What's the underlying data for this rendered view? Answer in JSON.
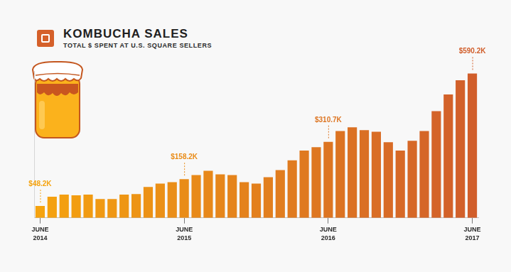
{
  "chart_data": {
    "type": "bar",
    "title": "KOMBUCHA SALES",
    "subtitle": "TOTAL $ SPENT AT U.S. SQUARE SELLERS",
    "categories": [
      "JUNE 2014",
      null,
      null,
      null,
      null,
      null,
      null,
      null,
      null,
      null,
      null,
      null,
      "JUNE 2015",
      null,
      null,
      null,
      null,
      null,
      null,
      null,
      null,
      null,
      null,
      null,
      "JUNE 2016",
      null,
      null,
      null,
      null,
      null,
      null,
      null,
      null,
      null,
      null,
      null,
      "JUNE 2017"
    ],
    "values": [
      48.2,
      86,
      94.6,
      92,
      94.6,
      77,
      77,
      94.6,
      97,
      126,
      140,
      146,
      158.2,
      175,
      192,
      178,
      175,
      146,
      140,
      166,
      195,
      235,
      275,
      289,
      310.7,
      355,
      370,
      358,
      352,
      309,
      275,
      315,
      355,
      436,
      504,
      562,
      590.2
    ],
    "value_labels": [
      "$48.2K",
      null,
      null,
      null,
      null,
      null,
      null,
      null,
      null,
      null,
      null,
      null,
      "$158.2K",
      null,
      null,
      null,
      null,
      null,
      null,
      null,
      null,
      null,
      null,
      null,
      "$310.7K",
      null,
      null,
      null,
      null,
      null,
      null,
      null,
      null,
      null,
      null,
      null,
      "$590.2K"
    ],
    "colors": [
      "#F5A30F",
      "#F4A110",
      "#F39F11",
      "#F29D11",
      "#F19B12",
      "#F09913",
      "#EF9714",
      "#EE9614",
      "#ED9415",
      "#EC9216",
      "#EB9017",
      "#EA8E18",
      "#E98C18",
      "#E88A19",
      "#E7881A",
      "#E6861B",
      "#E5841B",
      "#E4821C",
      "#E3801D",
      "#E27F1E",
      "#E17D1F",
      "#E07B1F",
      "#DF7920",
      "#DE7721",
      "#DD7522",
      "#DC7322",
      "#DB7123",
      "#DA6F24",
      "#D96D25",
      "#D86B26",
      "#D76926",
      "#D66827",
      "#D56628",
      "#D46429",
      "#D36229",
      "#D2602A",
      "#D15E2B"
    ],
    "ylim": [
      0,
      600
    ],
    "grid": false,
    "data_labels": true,
    "tick_labels": "x"
  }
}
